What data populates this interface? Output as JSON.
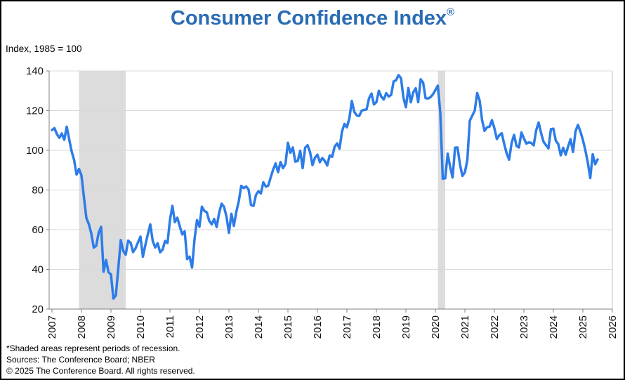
{
  "header": {
    "title": "Consumer Confidence Index",
    "registered_mark": "®"
  },
  "chart_data": {
    "type": "line",
    "title": "Consumer Confidence Index®",
    "subtitle": "Index, 1985 = 100",
    "legend": "none",
    "grid": "horizontal",
    "ylim": [
      20,
      140
    ],
    "y_ticks": [
      20,
      40,
      60,
      80,
      100,
      120,
      140
    ],
    "x_ticks": [
      2007,
      2008,
      2009,
      2010,
      2011,
      2012,
      2013,
      2014,
      2015,
      2016,
      2017,
      2018,
      2019,
      2020,
      2021,
      2022,
      2023,
      2024,
      2025,
      2026
    ],
    "recession_bands": [
      {
        "start": "2007-12",
        "end": "2009-06"
      },
      {
        "start": "2020-02",
        "end": "2020-04"
      }
    ],
    "series": [
      {
        "name": "Consumer Confidence Index",
        "frequency": "monthly",
        "start_year": 2007,
        "start_month": 1,
        "values": [
          110.2,
          111.2,
          108.2,
          106.3,
          108.5,
          105.3,
          111.9,
          105.6,
          99.5,
          95.2,
          87.8,
          90.6,
          87.3,
          76.4,
          65.9,
          62.8,
          58.1,
          51.0,
          51.9,
          58.5,
          61.4,
          38.8,
          44.7,
          38.6,
          37.4,
          25.3,
          26.9,
          40.8,
          54.8,
          49.3,
          47.4,
          54.5,
          53.4,
          48.7,
          50.6,
          53.6,
          56.5,
          46.4,
          52.3,
          57.7,
          62.7,
          54.3,
          51.0,
          53.2,
          48.6,
          49.9,
          54.3,
          53.3,
          64.8,
          72.0,
          63.8,
          66.0,
          61.7,
          57.6,
          59.2,
          45.2,
          46.4,
          40.9,
          55.2,
          64.8,
          61.5,
          71.6,
          69.5,
          68.7,
          64.4,
          62.7,
          65.4,
          61.3,
          68.4,
          73.1,
          71.5,
          66.7,
          58.4,
          68.0,
          61.9,
          69.0,
          74.3,
          82.1,
          81.0,
          81.8,
          80.2,
          72.4,
          72.0,
          77.5,
          79.4,
          78.3,
          83.9,
          81.7,
          82.2,
          86.4,
          90.3,
          93.4,
          89.0,
          94.1,
          91.0,
          93.1,
          103.8,
          98.8,
          101.4,
          94.3,
          94.6,
          99.8,
          91.0,
          101.3,
          102.6,
          99.1,
          92.6,
          96.3,
          97.8,
          94.0,
          96.1,
          94.7,
          92.4,
          97.4,
          96.7,
          101.8,
          103.5,
          100.8,
          109.5,
          113.3,
          111.6,
          116.1,
          124.9,
          119.4,
          117.6,
          117.3,
          120.0,
          120.4,
          120.6,
          126.2,
          128.6,
          123.1,
          124.3,
          130.0,
          127.0,
          125.6,
          128.8,
          127.1,
          127.9,
          134.7,
          135.3,
          137.9,
          136.4,
          126.6,
          121.7,
          131.4,
          124.2,
          129.2,
          131.3,
          124.3,
          135.8,
          134.2,
          126.3,
          126.1,
          126.8,
          128.2,
          130.4,
          132.6,
          118.8,
          85.7,
          85.9,
          98.3,
          91.7,
          86.3,
          101.3,
          101.4,
          92.9,
          87.1,
          88.9,
          95.2,
          114.9,
          117.5,
          120.0,
          128.9,
          125.1,
          115.2,
          109.8,
          111.6,
          111.9,
          115.2,
          111.1,
          105.7,
          107.6,
          108.6,
          103.2,
          98.4,
          95.3,
          103.6,
          107.8,
          102.2,
          101.4,
          109.0,
          106.0,
          103.4,
          104.0,
          103.7,
          102.5,
          110.1,
          114.0,
          108.7,
          104.3,
          102.6,
          101.0,
          110.7,
          110.9,
          104.8,
          103.1,
          97.5,
          101.3,
          97.8,
          101.9,
          105.6,
          99.2,
          109.6,
          112.8,
          109.5,
          105.3,
          100.1,
          93.9,
          86.0,
          98.0,
          93.0,
          95.4
        ]
      }
    ],
    "colors": {
      "line": "#2D7CE8",
      "recession_band": "#DCDCDC",
      "grid": "#D9D9D9",
      "axis": "#808080",
      "plot_border": "#C6C6C6",
      "title": "#2A6CB4"
    }
  },
  "footer": {
    "note_recession": "*Shaded areas represent periods of recession.",
    "note_sources": "Sources:  The Conference Board;  NBER",
    "note_copyright": "© 2025 The Conference Board. All rights reserved."
  }
}
